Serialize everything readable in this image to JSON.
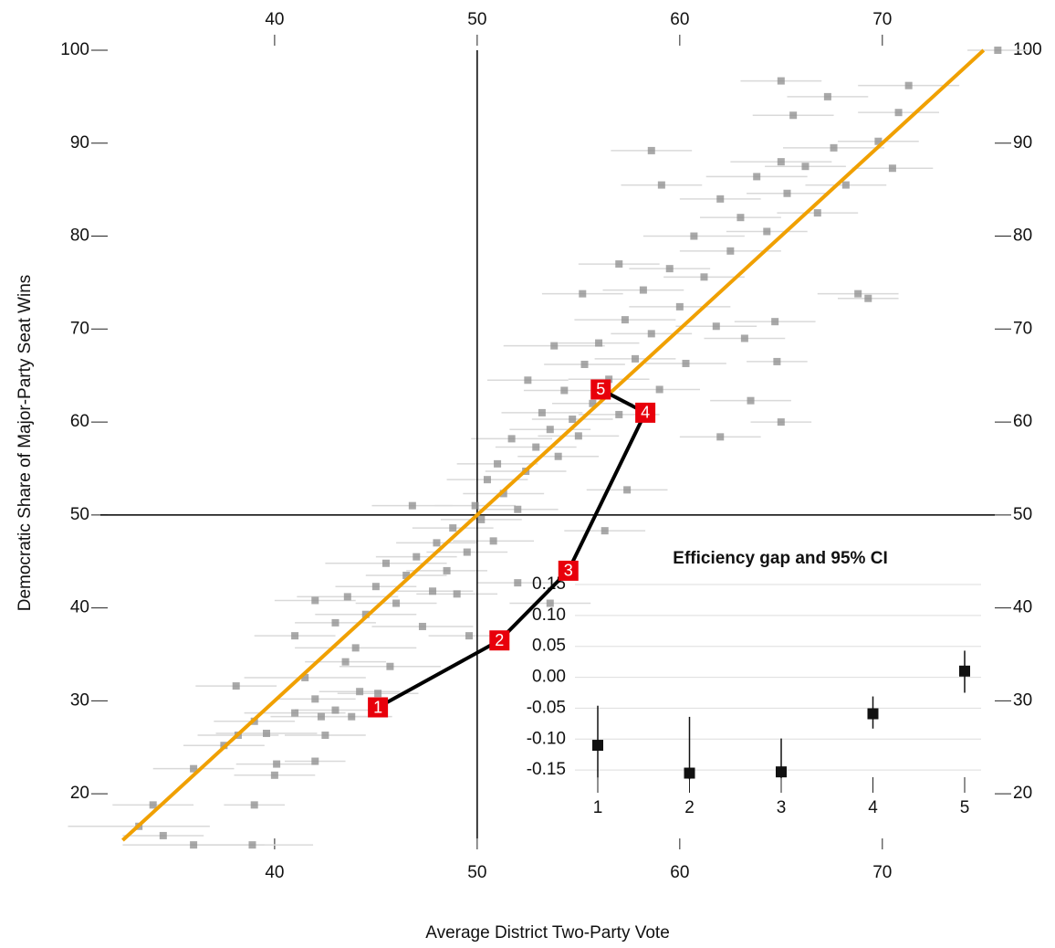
{
  "chart_data": [
    {
      "type": "scatter",
      "x_label": "Average District Two-Party Vote",
      "y_label": "Democratic Share of Major-Party Seat Wins",
      "xlim": [
        31.4,
        76
      ],
      "ylim": [
        15.2,
        100
      ],
      "xticks": [
        40,
        50,
        60,
        70
      ],
      "yticks": [
        20,
        30,
        40,
        50,
        60,
        70,
        80,
        90,
        100
      ],
      "point_color": "#8c8c8c",
      "error_color": "#d9d9d9",
      "points": {
        "x": [
          33.3,
          34.0,
          34.5,
          36.0,
          38.9,
          39.0,
          36.0,
          37.5,
          38.2,
          39.6,
          40.0,
          40.1,
          39.0,
          38.1,
          41.0,
          41.5,
          42.0,
          42.3,
          43.0,
          43.5,
          44.0,
          44.2,
          45.1,
          45.7,
          42.0,
          42.5,
          43.8,
          41.0,
          42.0,
          43.0,
          43.6,
          44.5,
          45.0,
          45.5,
          46.0,
          46.5,
          47.0,
          47.3,
          47.8,
          48.0,
          48.5,
          48.8,
          49.0,
          49.5,
          49.6,
          49.9,
          50.2,
          50.5,
          50.8,
          51.0,
          51.3,
          51.7,
          52.0,
          52.4,
          52.9,
          53.2,
          53.6,
          54.0,
          54.3,
          54.7,
          55.0,
          55.3,
          55.7,
          56.0,
          56.5,
          57.0,
          57.3,
          57.8,
          58.2,
          58.6,
          59.0,
          59.5,
          60.0,
          60.3,
          60.7,
          61.2,
          61.8,
          62.0,
          62.5,
          63.0,
          63.2,
          63.8,
          64.3,
          64.8,
          65.0,
          65.3,
          65.6,
          65.0,
          66.2,
          66.8,
          67.3,
          67.6,
          68.2,
          68.8,
          69.3,
          69.8,
          70.5,
          70.8,
          71.3,
          75.7,
          58.6,
          59.1,
          57.0,
          55.2,
          53.8,
          52.5,
          46.8,
          52.0,
          53.6,
          56.3,
          57.4,
          62.0,
          64.7,
          65.0,
          63.5
        ],
        "y": [
          16.5,
          18.8,
          15.5,
          14.5,
          14.5,
          18.8,
          22.7,
          25.2,
          26.3,
          26.5,
          22.0,
          23.2,
          27.8,
          31.6,
          28.7,
          32.5,
          30.2,
          28.3,
          29.0,
          34.2,
          35.7,
          31.0,
          30.8,
          33.7,
          23.5,
          26.3,
          28.3,
          37.0,
          40.8,
          38.4,
          41.2,
          39.3,
          42.3,
          44.8,
          40.5,
          43.5,
          45.5,
          38.0,
          41.8,
          47.0,
          44.0,
          48.6,
          41.5,
          46.0,
          37.0,
          51.0,
          49.5,
          53.8,
          47.2,
          55.5,
          52.3,
          58.2,
          50.6,
          54.7,
          57.3,
          61.0,
          59.2,
          56.3,
          63.4,
          60.3,
          58.5,
          66.2,
          62.0,
          68.5,
          64.6,
          60.8,
          71.0,
          66.8,
          74.2,
          69.5,
          63.5,
          76.5,
          72.4,
          66.3,
          80.0,
          75.6,
          70.3,
          84.0,
          78.4,
          82.0,
          69.0,
          86.4,
          80.5,
          66.5,
          88.0,
          84.6,
          93.0,
          96.7,
          87.5,
          82.5,
          95.0,
          89.5,
          85.5,
          73.8,
          73.3,
          90.2,
          87.3,
          93.3,
          96.2,
          100,
          89.2,
          85.5,
          77.0,
          73.8,
          68.2,
          64.5,
          51.0,
          42.7,
          40.5,
          48.3,
          52.7,
          58.4,
          70.8,
          60.0,
          62.3
        ],
        "err": [
          3.5,
          2,
          2,
          3.5,
          3,
          1.5,
          2,
          2,
          2,
          2.5,
          2,
          2,
          2,
          2,
          2.5,
          3,
          2,
          2.5,
          2,
          2,
          3,
          2,
          2,
          2.5,
          1.5,
          2,
          2,
          2,
          2,
          2,
          2.5,
          2.5,
          2,
          3,
          2,
          2,
          2,
          2.5,
          2,
          2,
          2,
          2,
          2,
          2,
          2,
          2,
          2,
          2,
          2,
          2,
          2,
          2,
          2,
          2,
          2,
          2,
          2,
          2,
          2,
          2,
          2,
          2,
          2,
          2,
          2,
          2,
          2.5,
          2,
          2,
          2,
          2,
          2,
          2.5,
          2,
          2.5,
          2,
          2,
          2,
          2.5,
          2,
          2,
          2.5,
          2,
          1.5,
          2.5,
          2,
          2,
          2,
          2,
          2,
          2,
          2.5,
          2,
          2,
          1.5,
          2,
          2,
          2,
          2.5,
          1.5,
          2,
          2,
          2,
          2,
          2.5,
          2,
          2,
          2,
          2,
          2,
          2,
          2,
          2,
          1.5,
          2
        ]
      },
      "reference_line": {
        "x": [
          32.5,
          75
        ],
        "y": [
          15,
          100
        ],
        "color": "#f0a000"
      },
      "path": {
        "x": [
          45.1,
          51.1,
          54.5,
          58.3,
          56.1
        ],
        "y": [
          29.3,
          36.5,
          44,
          61,
          63.5
        ],
        "labels": [
          "1",
          "2",
          "3",
          "4",
          "5"
        ],
        "color": "#e8000b"
      }
    },
    {
      "type": "errorbar",
      "title": "Efficiency gap and 95% CI",
      "categories": [
        "1",
        "2",
        "3",
        "4",
        "5"
      ],
      "values": [
        -0.11,
        -0.155,
        -0.153,
        -0.059,
        0.01
      ],
      "lower": [
        -0.162,
        -0.165,
        -0.163,
        -0.083,
        -0.025
      ],
      "upper": [
        -0.046,
        -0.064,
        -0.099,
        -0.031,
        0.043
      ],
      "ylim": [
        -0.169,
        0.167
      ],
      "yticks": [
        0.15,
        {
          "value": 0.1,
          "label": "0.10"
        },
        0.05,
        {
          "value": 0,
          "label": "0.00"
        },
        -0.05,
        {
          "value": -0.1,
          "label": "-0.10"
        },
        -0.15
      ],
      "color": "#111111",
      "grid": true
    }
  ]
}
